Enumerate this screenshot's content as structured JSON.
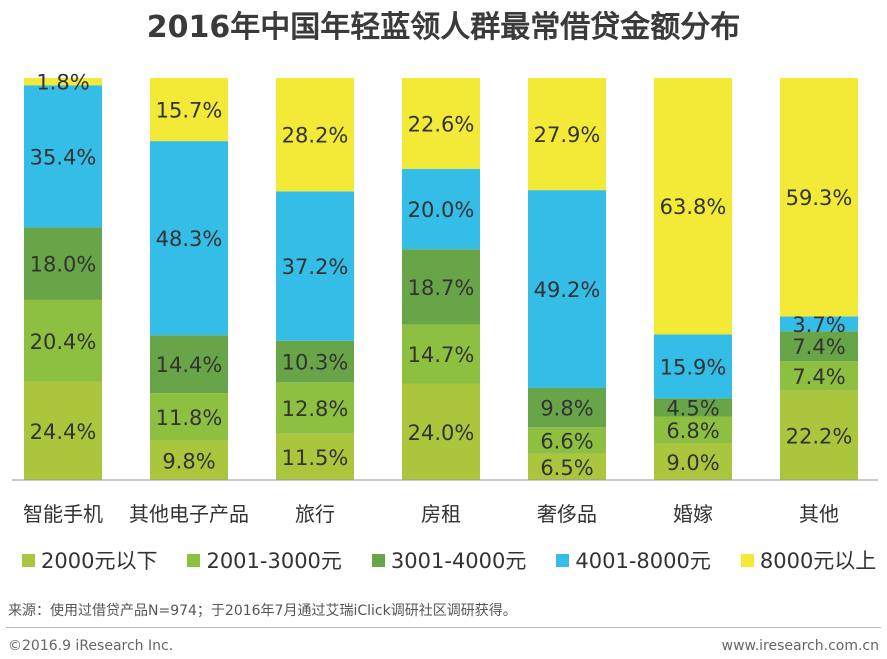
{
  "title": "2016年中国年轻蓝领人群最常借贷金额分布",
  "chart_data": {
    "type": "bar",
    "stacked": true,
    "categories": [
      "智能手机",
      "其他电子产品",
      "旅行",
      "房租",
      "奢侈品",
      "婚嫁",
      "其他"
    ],
    "series": [
      {
        "name": "2000元以下",
        "color": "#a9c63c",
        "values": [
          24.4,
          9.8,
          11.5,
          24.0,
          6.5,
          9.0,
          22.2
        ]
      },
      {
        "name": "2001-3000元",
        "color": "#8dbf41",
        "values": [
          20.4,
          11.8,
          12.8,
          14.7,
          6.6,
          6.8,
          7.4
        ]
      },
      {
        "name": "3001-4000元",
        "color": "#68a548",
        "values": [
          18.0,
          14.4,
          10.3,
          18.7,
          9.8,
          4.5,
          7.4
        ]
      },
      {
        "name": "4001-8000元",
        "color": "#34bde6",
        "values": [
          35.4,
          48.3,
          37.2,
          20.0,
          49.2,
          15.9,
          3.7
        ]
      },
      {
        "name": "8000元以上",
        "color": "#f2ea36",
        "values": [
          1.8,
          15.7,
          28.2,
          22.6,
          27.9,
          63.8,
          59.3
        ]
      }
    ],
    "labels": [
      [
        "24.4%",
        "20.4%",
        "18.0%",
        "35.4%",
        "1.8%"
      ],
      [
        "9.8%",
        "11.8%",
        "14.4%",
        "48.3%",
        "15.7%"
      ],
      [
        "11.5%",
        "12.8%",
        "10.3%",
        "37.2%",
        "28.2%"
      ],
      [
        "24.0%",
        "14.7%",
        "18.7%",
        "20.0%",
        "22.6%"
      ],
      [
        "6.5%",
        "6.6%",
        "9.8%",
        "49.2%",
        "27.9%"
      ],
      [
        "9.0%",
        "6.8%",
        "4.5%",
        "15.9%",
        "63.8%"
      ],
      [
        "22.2%",
        "7.4%",
        "7.4%",
        "3.7%",
        "59.3%"
      ]
    ],
    "ylim": [
      0,
      100
    ],
    "legend": "bottom",
    "grid": false
  },
  "source": "来源：使用过借贷产品N=974；于2016年7月通过艾瑞iClick调研社区调研获得。",
  "copyright": "©2016.9 iResearch Inc.",
  "website": "www.iresearch.com.cn"
}
